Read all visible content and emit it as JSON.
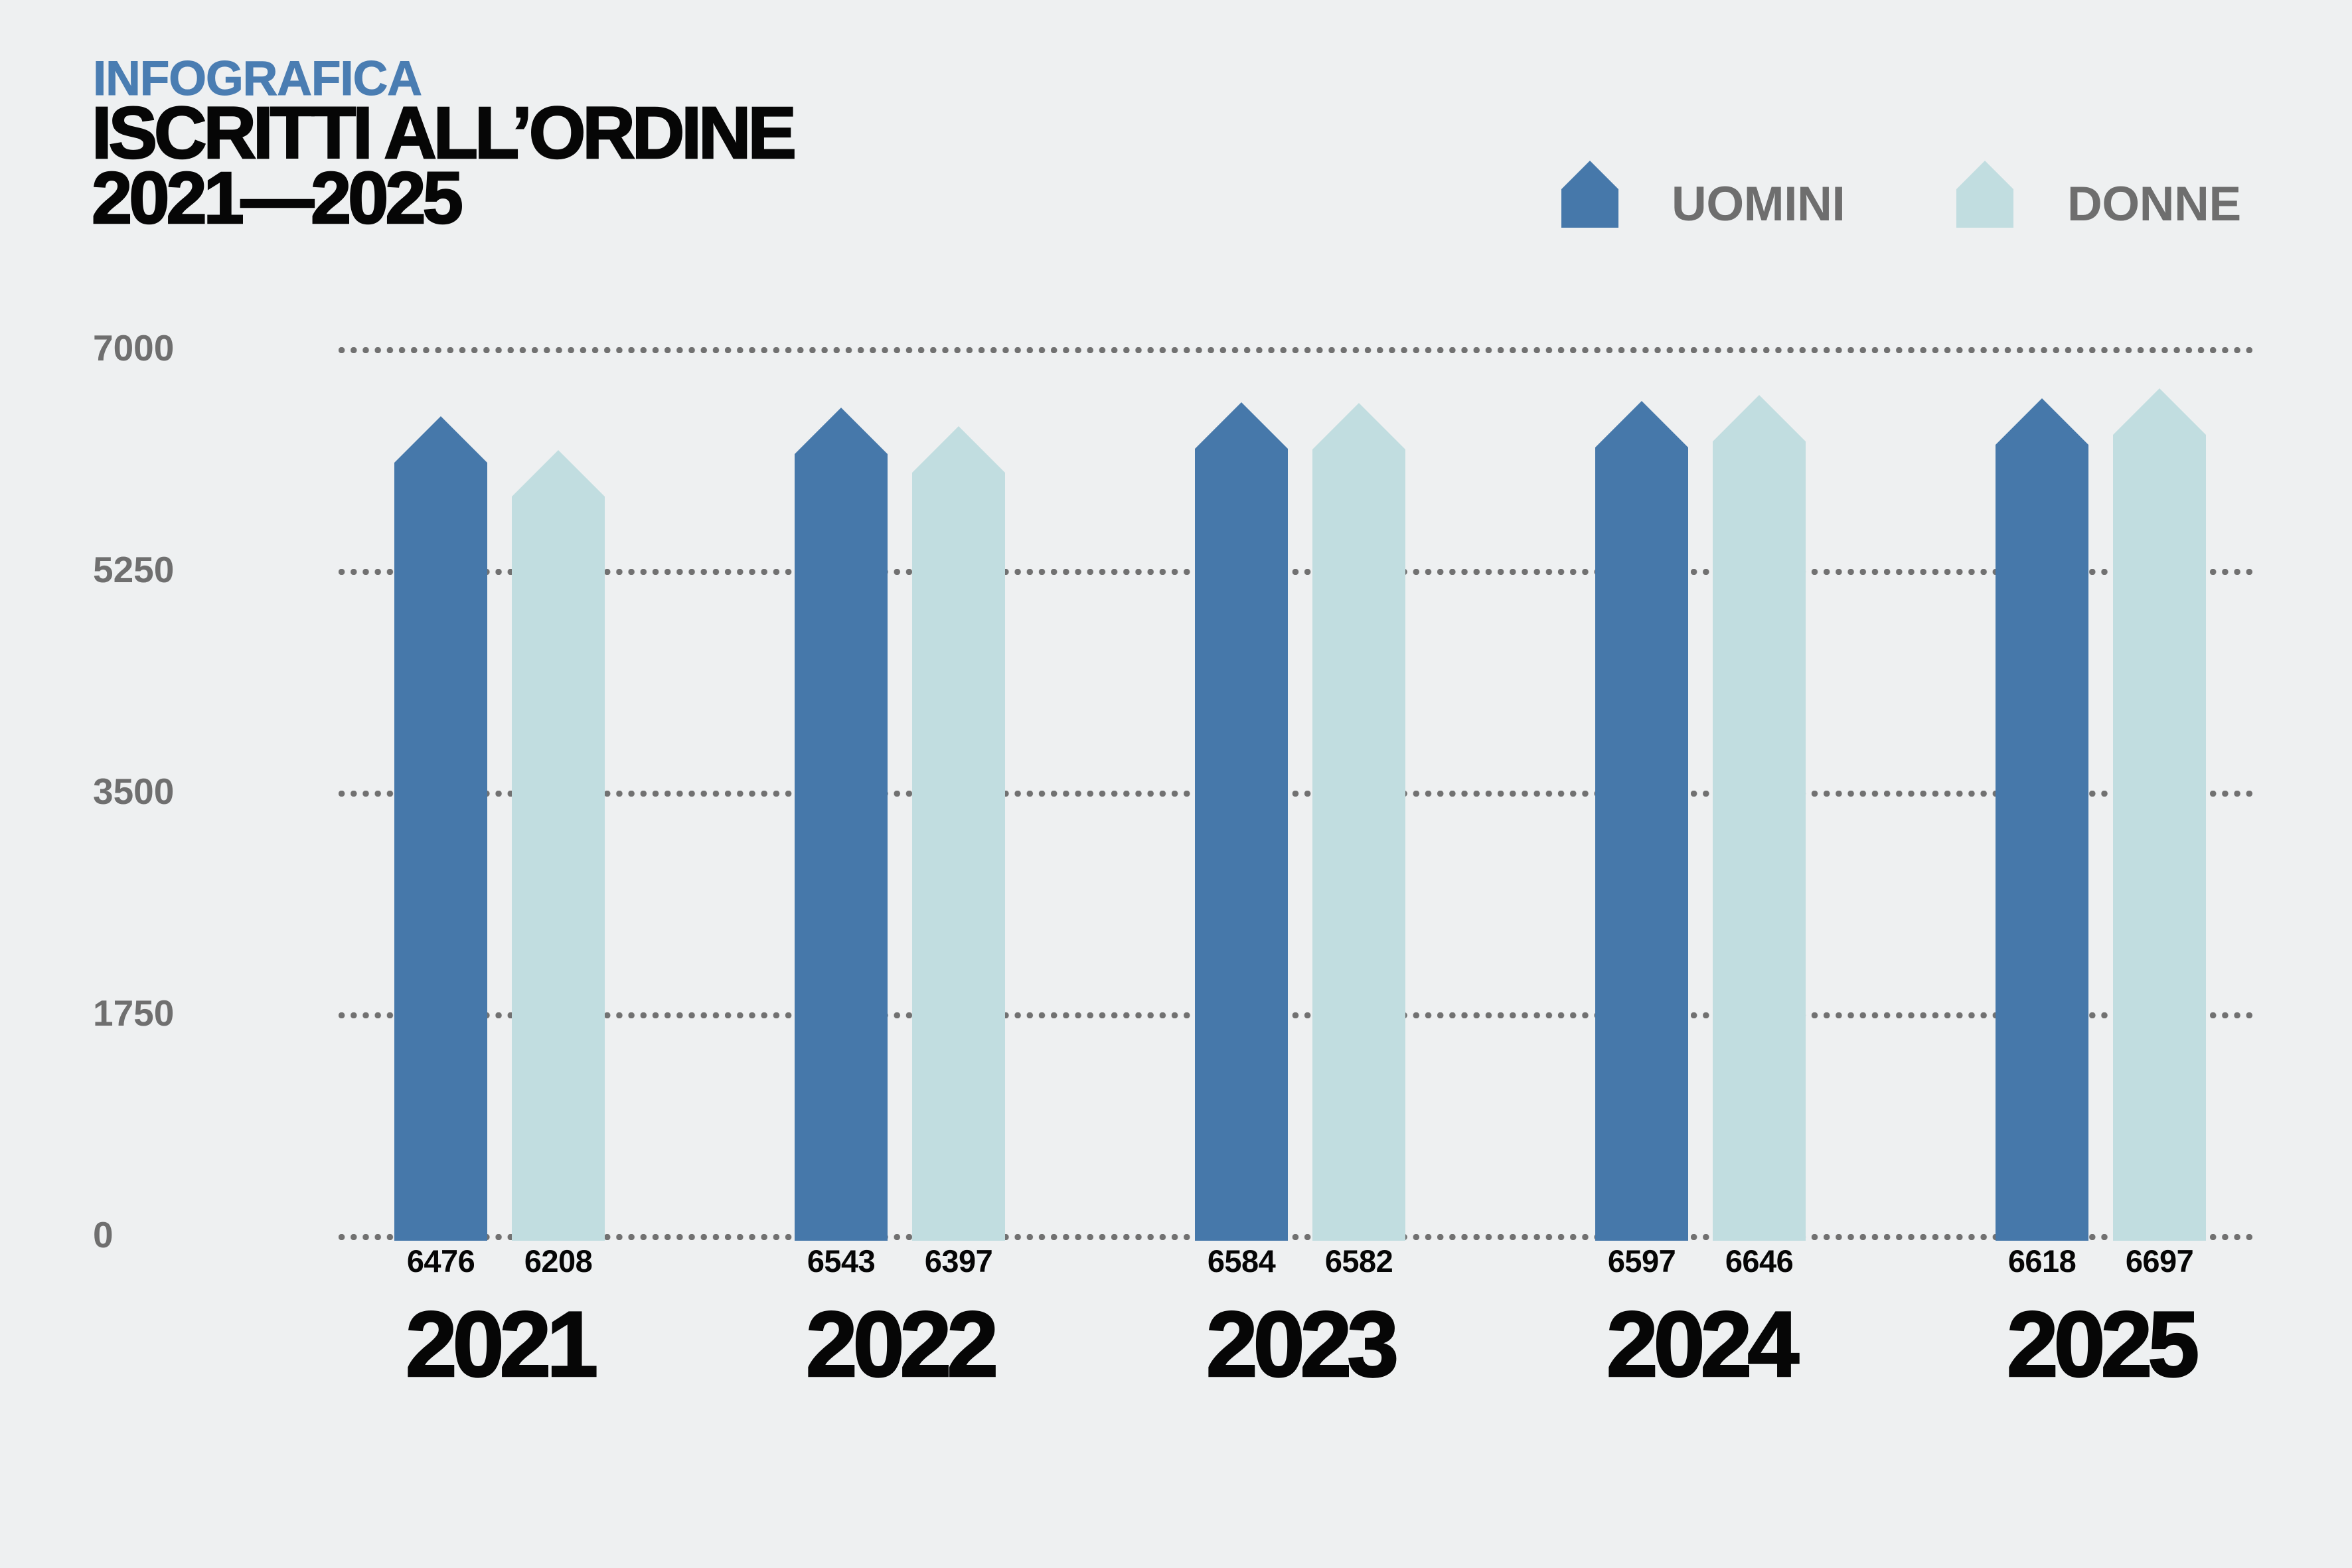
{
  "header": {
    "kicker": "INFOGRAFICA",
    "title_line1": "ISCRITTI ALL’ORDINE",
    "title_line2": "2021—2025"
  },
  "legend": [
    {
      "label": "UOMINI",
      "color": "#4678aa"
    },
    {
      "label": "DONNE",
      "color": "#c1dde0"
    }
  ],
  "colors": {
    "background": "#eef0f1",
    "kicker_blue": "#4a7db2",
    "uomini_blue": "#4678aa",
    "donne_teal": "#c1dde0",
    "axis_gray": "#6f6f6f",
    "legend_gray": "#6e6e6e",
    "grid_dot_gray": "#717171",
    "text_black": "#060606"
  },
  "chart_data": {
    "type": "bar",
    "title": "ISCRITTI ALL’ORDINE 2021—2025",
    "categories": [
      "2021",
      "2022",
      "2023",
      "2024",
      "2025"
    ],
    "series": [
      {
        "name": "UOMINI",
        "color": "#4678aa",
        "values": [
          6476,
          6543,
          6584,
          6597,
          6618
        ]
      },
      {
        "name": "DONNE",
        "color": "#c1dde0",
        "values": [
          6208,
          6397,
          6582,
          6646,
          6697
        ]
      }
    ],
    "xlabel": "",
    "ylabel": "",
    "ylim": [
      0,
      7000
    ],
    "yticks": [
      7000,
      5250,
      3500,
      1750,
      0
    ],
    "grid": "horizontal-dotted",
    "legend_position": "top-right",
    "bar_shape": "pointed-top",
    "value_labels": "below-bars"
  }
}
